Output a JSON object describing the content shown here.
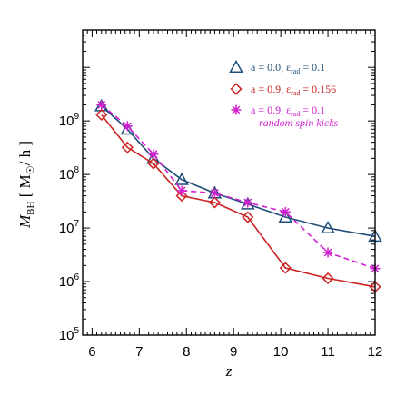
{
  "chart_data": {
    "type": "line",
    "xlabel": "z",
    "ylabel_main": "M",
    "ylabel_sub": "BH",
    "ylabel_units": " [ M",
    "ylabel_units_end": "/ h ]",
    "xlim": [
      5.8,
      12.0
    ],
    "ylim": [
      100000,
      50000000000
    ],
    "y_scale": "log",
    "x_ticks": [
      6,
      7,
      8,
      9,
      10,
      11,
      12
    ],
    "x_tick_labels": [
      "6",
      "7",
      "8",
      "9",
      "10",
      "11",
      "12"
    ],
    "y_ticks": [
      100000,
      1000000,
      10000000,
      100000000,
      1000000000
    ],
    "y_tick_labels": [
      {
        "base": "10",
        "exp": "5"
      },
      {
        "base": "10",
        "exp": "6"
      },
      {
        "base": "10",
        "exp": "7"
      },
      {
        "base": "10",
        "exp": "8"
      },
      {
        "base": "10",
        "exp": "9"
      }
    ],
    "series": [
      {
        "id": "blue",
        "color": "#1f4e79",
        "marker": "triangle",
        "dashed": false,
        "legend": {
          "prefix": "a = 0.0, ε",
          "sub": "rad",
          "suffix": " = 0.1"
        },
        "x": [
          6.2,
          6.75,
          7.3,
          7.9,
          8.6,
          9.3,
          10.1,
          11.0,
          12.0
        ],
        "y": [
          1900000000,
          700000000,
          200000000,
          80000000,
          45000000,
          28000000,
          16000000,
          10000000,
          7000000
        ]
      },
      {
        "id": "red",
        "color": "#cc2222",
        "marker": "diamond",
        "dashed": false,
        "legend": {
          "prefix": "a = 0.9, ε",
          "sub": "rad",
          "suffix": " = 0.156"
        },
        "x": [
          6.2,
          6.75,
          7.3,
          7.9,
          8.6,
          9.3,
          10.1,
          11.0,
          12.0
        ],
        "y": [
          1300000000,
          320000000,
          160000000,
          40000000,
          30000000,
          16000000,
          1800000,
          1150000,
          800000
        ]
      },
      {
        "id": "magenta",
        "color": "#d020d0",
        "marker": "star",
        "dashed": true,
        "legend": {
          "prefix": "a = 0.9, ε",
          "sub": "rad",
          "suffix": " = 0.1"
        },
        "x": [
          6.2,
          6.75,
          7.3,
          7.9,
          8.6,
          9.3,
          10.1,
          11.0,
          12.0
        ],
        "y": [
          2000000000,
          800000000,
          240000000,
          50000000,
          45000000,
          30000000,
          20000000,
          3500000,
          1750000
        ]
      }
    ],
    "legend_note": "random spin kicks",
    "legend_placement": "top-right"
  }
}
